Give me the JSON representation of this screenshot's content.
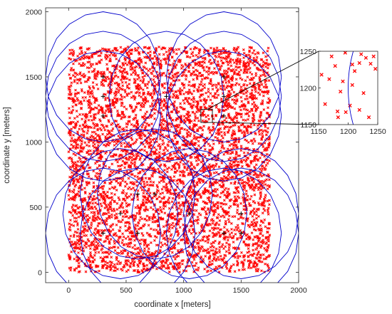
{
  "chart_data": [
    {
      "type": "scatter",
      "title": "",
      "xlabel": "coordinate x [meters]",
      "ylabel": "coordinate y [meters]",
      "xlim": [
        -200,
        2000
      ],
      "ylim": [
        -80,
        2030
      ],
      "xticks": [
        0,
        500,
        1000,
        1500,
        2000
      ],
      "yticks": [
        0,
        500,
        1000,
        1500,
        2000
      ],
      "xtick_labels": [
        "0",
        "500",
        "1000",
        "1500",
        "2000"
      ],
      "ytick_labels": [
        "0",
        "500",
        "1000",
        "1500",
        "2000"
      ],
      "grid": false,
      "node_region": {
        "x": [
          0,
          1750
        ],
        "y": [
          0,
          1730
        ]
      },
      "node_marker": "x",
      "node_color": "#ff0000",
      "circle_color": "#0000cc",
      "center_marker": "+",
      "center_color": "#000000",
      "centers": [
        {
          "x": 300,
          "y": 1500,
          "r": 500
        },
        {
          "x": 300,
          "y": 1350,
          "r": 500
        },
        {
          "x": 300,
          "y": 1200,
          "r": 500
        },
        {
          "x": 850,
          "y": 1350,
          "r": 500
        },
        {
          "x": 1350,
          "y": 1500,
          "r": 500
        },
        {
          "x": 1350,
          "y": 1350,
          "r": 500
        },
        {
          "x": 1350,
          "y": 1200,
          "r": 500
        },
        {
          "x": 450,
          "y": 450,
          "r": 500
        },
        {
          "x": 600,
          "y": 600,
          "r": 500
        },
        {
          "x": 750,
          "y": 600,
          "r": 500
        },
        {
          "x": 600,
          "y": 300,
          "r": 500
        },
        {
          "x": 300,
          "y": 300,
          "r": 500
        },
        {
          "x": 1050,
          "y": 450,
          "r": 500
        },
        {
          "x": 1350,
          "y": 300,
          "r": 500
        },
        {
          "x": 1500,
          "y": 450,
          "r": 500
        },
        {
          "x": 1500,
          "y": 300,
          "r": 500
        }
      ],
      "inset_box": {
        "x": [
          1150,
          1250
        ],
        "y": [
          1150,
          1250
        ]
      }
    },
    {
      "type": "scatter",
      "title": "",
      "xlabel": "",
      "ylabel": "",
      "xlim": [
        1150,
        1250
      ],
      "ylim": [
        1150,
        1250
      ],
      "xticks": [
        1150,
        1200,
        1250
      ],
      "yticks": [
        1150,
        1200,
        1250
      ],
      "xtick_labels": [
        "1150",
        "1200",
        "1250"
      ],
      "ytick_labels": [
        "1150",
        "1200",
        "1250"
      ],
      "points": [
        {
          "x": 1172,
          "y": 1243
        },
        {
          "x": 1195,
          "y": 1248
        },
        {
          "x": 1222,
          "y": 1246
        },
        {
          "x": 1230,
          "y": 1241
        },
        {
          "x": 1243,
          "y": 1243
        },
        {
          "x": 1219,
          "y": 1234
        },
        {
          "x": 1238,
          "y": 1233
        },
        {
          "x": 1178,
          "y": 1230
        },
        {
          "x": 1207,
          "y": 1232
        },
        {
          "x": 1246,
          "y": 1226
        },
        {
          "x": 1211,
          "y": 1223
        },
        {
          "x": 1155,
          "y": 1218
        },
        {
          "x": 1168,
          "y": 1212
        },
        {
          "x": 1191,
          "y": 1209
        },
        {
          "x": 1207,
          "y": 1204
        },
        {
          "x": 1187,
          "y": 1195
        },
        {
          "x": 1226,
          "y": 1193
        },
        {
          "x": 1161,
          "y": 1178
        },
        {
          "x": 1203,
          "y": 1176
        },
        {
          "x": 1182,
          "y": 1168
        },
        {
          "x": 1196,
          "y": 1167
        },
        {
          "x": 1219,
          "y": 1170
        },
        {
          "x": 1183,
          "y": 1160
        },
        {
          "x": 1235,
          "y": 1160
        }
      ],
      "arc": {
        "cx": 1350,
        "cy": 1200,
        "r": 150
      }
    }
  ]
}
